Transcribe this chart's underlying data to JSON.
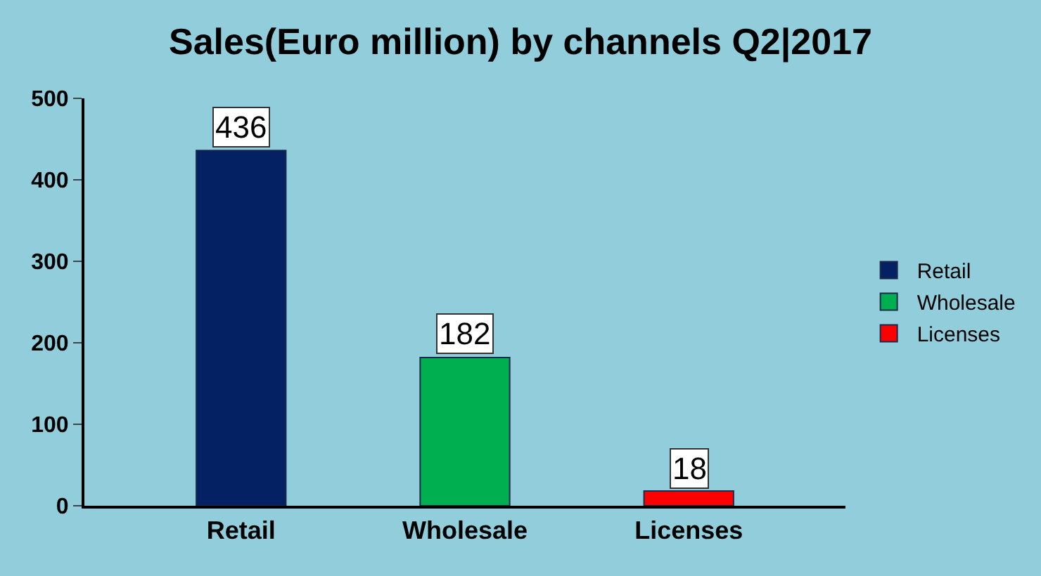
{
  "chart_data": {
    "type": "bar",
    "title": "Sales(Euro million) by channels Q2|2017",
    "categories": [
      "Retail",
      "Wholesale",
      "Licenses"
    ],
    "series": [
      {
        "name": "Retail",
        "color": "#042164",
        "values": [
          436,
          null,
          null
        ]
      },
      {
        "name": "Wholesale",
        "color": "#00b050",
        "values": [
          null,
          182,
          null
        ]
      },
      {
        "name": "Licenses",
        "color": "#ff0000",
        "values": [
          null,
          null,
          18
        ]
      }
    ],
    "ylim": [
      0,
      500
    ],
    "yticks": [
      0,
      100,
      200,
      300,
      400,
      500
    ],
    "data_labels": true,
    "grid": false,
    "legend": "right"
  }
}
